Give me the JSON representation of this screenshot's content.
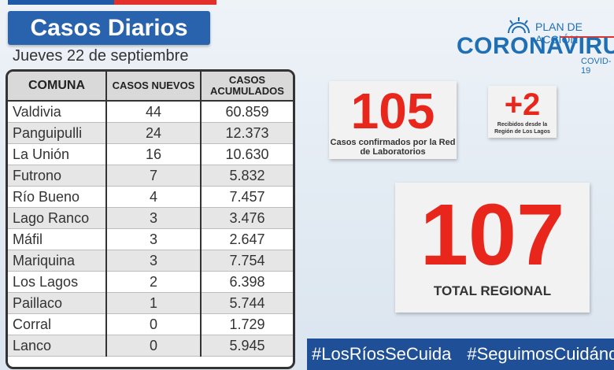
{
  "header": {
    "title": "Casos Diarios",
    "date": "Jueves 22 de septiembre"
  },
  "table": {
    "headers": [
      "COMUNA",
      "CASOS NUEVOS",
      "CASOS ACUMULADOS"
    ],
    "rows": [
      {
        "comuna": "Valdivia",
        "nuevos": "44",
        "acumulados": "60.859"
      },
      {
        "comuna": "Panguipulli",
        "nuevos": "24",
        "acumulados": "12.373"
      },
      {
        "comuna": "La Unión",
        "nuevos": "16",
        "acumulados": "10.630"
      },
      {
        "comuna": "Futrono",
        "nuevos": "7",
        "acumulados": "5.832"
      },
      {
        "comuna": "Río Bueno",
        "nuevos": "4",
        "acumulados": "7.457"
      },
      {
        "comuna": "Lago Ranco",
        "nuevos": "3",
        "acumulados": "3.476"
      },
      {
        "comuna": "Máfil",
        "nuevos": "3",
        "acumulados": "2.647"
      },
      {
        "comuna": "Mariquina",
        "nuevos": "3",
        "acumulados": "7.754"
      },
      {
        "comuna": "Los Lagos",
        "nuevos": "2",
        "acumulados": "6.398"
      },
      {
        "comuna": "Paillaco",
        "nuevos": "1",
        "acumulados": "5.744"
      },
      {
        "comuna": "Corral",
        "nuevos": "0",
        "acumulados": "1.729"
      },
      {
        "comuna": "Lanco",
        "nuevos": "0",
        "acumulados": "5.945"
      }
    ]
  },
  "logo": {
    "plan": "PLAN DE ACCIÓN",
    "name": "CORONAVIRUS",
    "covid": "COVID-19",
    "icon": "sun-icon"
  },
  "cards": {
    "lab": {
      "value": "105",
      "label": "Casos confirmados por la Red de Laboratorios"
    },
    "received": {
      "value": "+2",
      "label": "Recibidos desde la Región de Los Lagos"
    },
    "total": {
      "value": "107",
      "label": "TOTAL REGIONAL"
    }
  },
  "hashtags": [
    "#LosRíosSeCuida",
    "#SeguimosCuidándonos"
  ],
  "colors": {
    "accent_blue": "#2a63ad",
    "accent_red": "#e8261c",
    "bar_blue": "#1f4f96"
  }
}
